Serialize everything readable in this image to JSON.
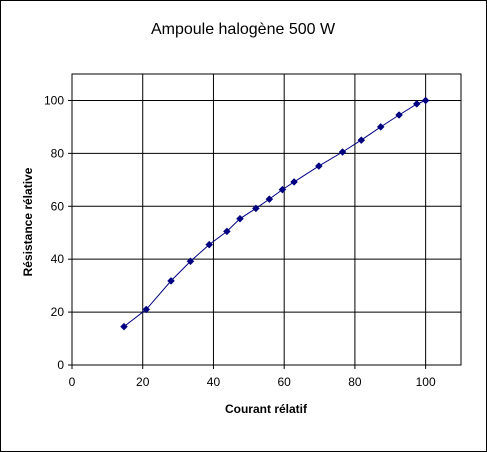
{
  "chart_data": {
    "type": "scatter",
    "title": "Ampoule halogène 500 W",
    "xlabel": "Courant rélatif",
    "ylabel": "Résistance rélative",
    "xlim": [
      0,
      110
    ],
    "ylim": [
      0,
      110
    ],
    "xticks": [
      0,
      20,
      40,
      60,
      80,
      100
    ],
    "yticks": [
      0,
      20,
      40,
      60,
      80,
      100
    ],
    "xtick_labels": [
      "0",
      "20",
      "40",
      "60",
      "80",
      "100"
    ],
    "ytick_labels": [
      "0",
      "20",
      "40",
      "60",
      "80",
      "100"
    ],
    "grid": true,
    "line_style": "connected points",
    "series": [
      {
        "color": "#000080",
        "x": [
          14.7,
          21.0,
          28.0,
          33.5,
          38.8,
          43.8,
          47.5,
          52.0,
          55.8,
          59.5,
          62.8,
          69.8,
          76.5,
          81.8,
          87.3,
          92.5,
          97.5,
          100
        ],
        "y": [
          14.5,
          21.0,
          31.8,
          39.2,
          45.5,
          50.5,
          55.3,
          59.2,
          62.7,
          66.3,
          69.2,
          75.2,
          80.5,
          85.0,
          90.0,
          94.5,
          98.7,
          100
        ]
      }
    ]
  }
}
